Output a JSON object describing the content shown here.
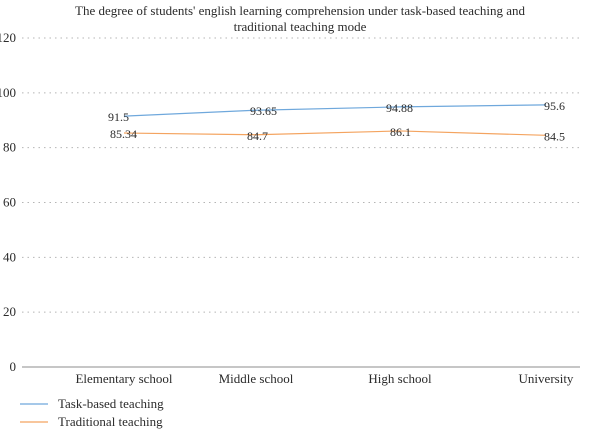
{
  "chart_data": {
    "type": "line",
    "title": "The degree of students' english learning comprehension under task-based teaching and traditional teaching mode",
    "title_lines": [
      "The degree of students' english learning comprehension under task-based teaching and",
      "traditional teaching mode"
    ],
    "categories": [
      "Elementary school",
      "Middle school",
      "High school",
      "University"
    ],
    "series": [
      {
        "name": "Task-based teaching",
        "color": "#6fa8dc",
        "values": [
          91.5,
          93.65,
          94.88,
          95.6
        ],
        "labels": [
          "91.5",
          "93.65",
          "94.88",
          "95.6"
        ]
      },
      {
        "name": "Traditional teaching",
        "color": "#f4a460",
        "values": [
          85.34,
          84.7,
          86.1,
          84.5
        ],
        "labels": [
          "85.34",
          "84.7",
          "86.1",
          "84.5"
        ]
      }
    ],
    "ylim": [
      0,
      120
    ],
    "yticks": [
      "0",
      "20",
      "40",
      "60",
      "80",
      "100",
      "120"
    ],
    "grid": true,
    "legend_position": "bottom-left"
  }
}
